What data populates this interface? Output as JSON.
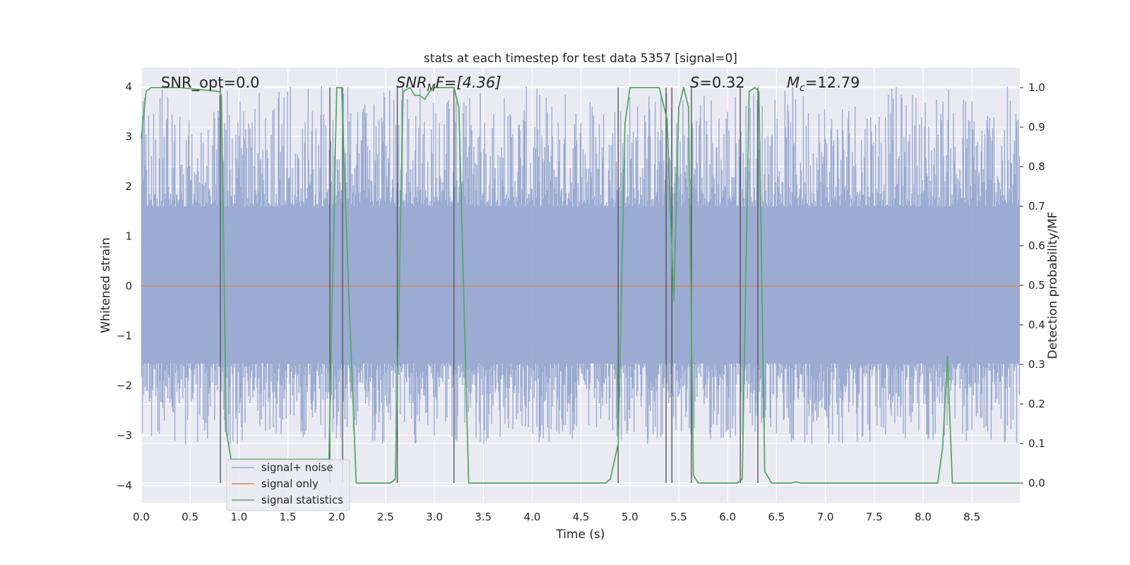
{
  "chart_data": {
    "type": "line",
    "title": "stats at each timestep for test data 5357 [signal=0]",
    "xlabel": "Time (s)",
    "ylabel_left": "Whitened strain",
    "ylabel_right": "Detection probability/MF",
    "xlim": [
      0.0,
      8.99
    ],
    "ylim_left": [
      -4.35,
      4.38
    ],
    "ylim_right": [
      -0.05,
      1.05
    ],
    "x_ticks": [
      "0.0",
      "0.5",
      "1.0",
      "1.5",
      "2.0",
      "2.5",
      "3.0",
      "3.5",
      "4.0",
      "4.5",
      "5.0",
      "5.5",
      "6.0",
      "6.5",
      "7.0",
      "7.5",
      "8.0",
      "8.5"
    ],
    "y_left_ticks": [
      "−4",
      "−3",
      "−2",
      "−1",
      "0",
      "1",
      "2",
      "3",
      "4"
    ],
    "y_right_ticks": [
      "0.0",
      "0.1",
      "0.2",
      "0.3",
      "0.4",
      "0.5",
      "0.6",
      "0.7",
      "0.8",
      "0.9",
      "1.0"
    ],
    "grid": true,
    "legend_position": "lower-left",
    "annotations": {
      "snr_opt": "SNR_opt=0.0",
      "snr_mf_base": "SNR",
      "snr_mf_sub": "M",
      "snr_mf_rest": "F=[4.36]",
      "s_italic": "S",
      "s_rest": "=0.32",
      "mc_base": "M",
      "mc_sub": "c",
      "mc_rest": "=12.79"
    },
    "colors": {
      "background": "#eaeaf2",
      "grid": "#ffffff",
      "noise": "#97a8d0",
      "signal_only": "#dd8452",
      "statistics": "#55a868",
      "vlines": "#4d4d4d"
    },
    "series": [
      {
        "name": "signal+ noise",
        "kind": "noise-band",
        "envelope_bulk": [
          -1.55,
          1.6
        ],
        "typical_peaks": [
          -3.1,
          3.9
        ]
      },
      {
        "name": "signal only",
        "values": [
          [
            0.0,
            0.0
          ],
          [
            8.99,
            0.0
          ]
        ]
      },
      {
        "name": "signal statistics",
        "points": [
          [
            0.0,
            0.87
          ],
          [
            0.05,
            0.99
          ],
          [
            0.1,
            1.0
          ],
          [
            0.4,
            1.0
          ],
          [
            0.8,
            0.99
          ],
          [
            0.82,
            0.98
          ],
          [
            0.87,
            0.13
          ],
          [
            0.92,
            0.06
          ],
          [
            1.92,
            0.06
          ],
          [
            2.0,
            1.0
          ],
          [
            2.05,
            1.0
          ],
          [
            2.12,
            0.5
          ],
          [
            2.2,
            0.0
          ],
          [
            2.55,
            0.0
          ],
          [
            2.6,
            0.01
          ],
          [
            2.68,
            0.99
          ],
          [
            2.75,
            1.0
          ],
          [
            2.8,
            0.98
          ],
          [
            2.85,
            0.98
          ],
          [
            2.9,
            0.97
          ],
          [
            2.95,
            0.99
          ],
          [
            3.0,
            1.0
          ],
          [
            3.2,
            1.0
          ],
          [
            3.25,
            0.95
          ],
          [
            3.35,
            0.0
          ],
          [
            4.75,
            0.0
          ],
          [
            4.8,
            0.01
          ],
          [
            4.88,
            0.1
          ],
          [
            4.95,
            0.91
          ],
          [
            5.0,
            1.0
          ],
          [
            5.3,
            1.0
          ],
          [
            5.38,
            0.92
          ],
          [
            5.45,
            0.46
          ],
          [
            5.5,
            0.95
          ],
          [
            5.55,
            1.0
          ],
          [
            5.6,
            0.95
          ],
          [
            5.65,
            0.02
          ],
          [
            5.7,
            0.0
          ],
          [
            6.1,
            0.0
          ],
          [
            6.15,
            0.01
          ],
          [
            6.22,
            0.99
          ],
          [
            6.28,
            1.0
          ],
          [
            6.32,
            0.99
          ],
          [
            6.38,
            0.03
          ],
          [
            6.45,
            0.0
          ],
          [
            6.65,
            0.0
          ],
          [
            6.7,
            0.003
          ],
          [
            6.75,
            0.0
          ],
          [
            8.15,
            0.0
          ],
          [
            8.2,
            0.09
          ],
          [
            8.25,
            0.32
          ],
          [
            8.3,
            0.0
          ],
          [
            8.99,
            0.0
          ]
        ]
      }
    ],
    "vertical_lines_x": [
      0.81,
      1.93,
      2.06,
      2.62,
      3.2,
      4.88,
      5.37,
      5.43,
      5.63,
      6.13,
      6.31
    ]
  }
}
